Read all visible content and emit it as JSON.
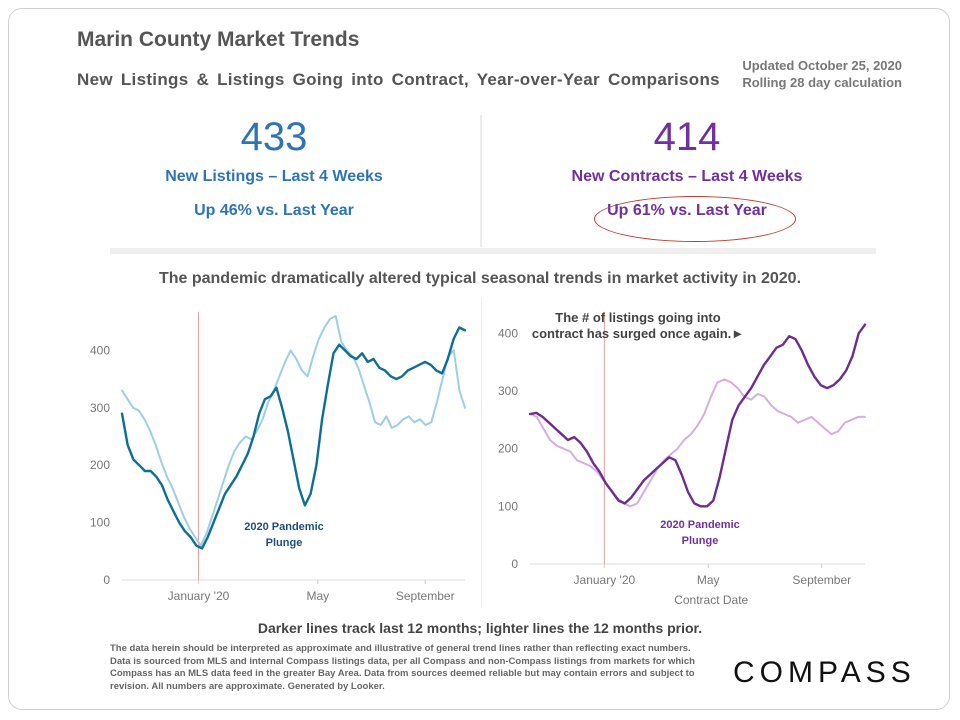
{
  "header": {
    "title": "Marin County Market Trends",
    "subtitle": "New Listings & Listings Going into Contract, Year-over-Year Comparisons",
    "updated": "Updated October 25, 2020",
    "rolling": "Rolling 28 day calculation"
  },
  "kpis": {
    "listings": {
      "value": "433",
      "label": "New Listings – Last 4 Weeks",
      "change": "Up 46% vs. Last Year"
    },
    "contracts": {
      "value": "414",
      "label": "New Contracts – Last 4 Weeks",
      "change": "Up 61% vs. Last Year"
    }
  },
  "section_heading": "The pandemic dramatically altered typical seasonal trends in market activity in 2020.",
  "footer": {
    "caption": "Darker lines track last 12 months; lighter lines the 12 months prior.",
    "disclaimer": "The data herein should be interpreted as approximate and illustrative of general trend lines rather than reflecting exact numbers. Data is sourced from MLS and internal Compass listings data, per all Compass and non-Compass listings from markets for which Compass has an MLS data feed in the greater Bay Area. Data from sources deemed reliable but may contain errors and subject to revision. All numbers are approximate. Generated by Looker.",
    "logo": "COMPASS"
  },
  "colors": {
    "blue_dark": "#0e6e96",
    "blue_light": "#9ccfe6",
    "purple_dark": "#6e2c8e",
    "purple_light": "#d4afde",
    "marker": "#e8a0a0"
  },
  "chart_data": [
    {
      "type": "line",
      "title": "New Listings",
      "xlabel": "",
      "ylabel": "",
      "ylim": [
        0,
        460
      ],
      "yticks": [
        0,
        100,
        200,
        300,
        400
      ],
      "x_tick_labels": [
        "January '20",
        "May",
        "September"
      ],
      "x_tick_positions": [
        0.223,
        0.571,
        0.884
      ],
      "marker_position": 0.223,
      "annotations": [
        {
          "text": [
            "2020 Pandemic",
            "Plunge"
          ]
        }
      ],
      "series": [
        {
          "name": "Last 12 months",
          "values": [
            290,
            235,
            210,
            200,
            190,
            190,
            180,
            165,
            140,
            120,
            100,
            85,
            75,
            60,
            55,
            75,
            100,
            125,
            150,
            165,
            180,
            200,
            220,
            250,
            290,
            315,
            320,
            335,
            300,
            260,
            210,
            160,
            130,
            150,
            200,
            280,
            340,
            395,
            410,
            400,
            390,
            385,
            395,
            380,
            385,
            370,
            365,
            355,
            350,
            355,
            365,
            370,
            375,
            380,
            375,
            365,
            360,
            385,
            420,
            440,
            435
          ]
        },
        {
          "name": "12 months prior",
          "values": [
            330,
            315,
            300,
            295,
            280,
            260,
            235,
            205,
            180,
            160,
            135,
            110,
            90,
            75,
            60,
            80,
            110,
            140,
            170,
            200,
            225,
            240,
            250,
            245,
            260,
            280,
            310,
            330,
            355,
            380,
            400,
            385,
            365,
            355,
            390,
            420,
            440,
            455,
            460,
            415,
            400,
            390,
            370,
            340,
            310,
            275,
            270,
            285,
            265,
            270,
            280,
            285,
            275,
            280,
            270,
            275,
            310,
            350,
            390,
            400,
            330,
            300
          ]
        }
      ]
    },
    {
      "type": "line",
      "title": "New Contracts",
      "xlabel": "Contract Date",
      "ylabel": "",
      "ylim": [
        0,
        430
      ],
      "yticks": [
        0,
        100,
        200,
        300,
        400
      ],
      "x_tick_labels": [
        "January '20",
        "May",
        "September"
      ],
      "x_tick_positions": [
        0.222,
        0.532,
        0.871
      ],
      "marker_position": 0.222,
      "annotations": [
        {
          "text": [
            "The # of listings going into",
            "contract has surged once again.►"
          ]
        },
        {
          "text": [
            "2020 Pandemic",
            "Plunge"
          ]
        }
      ],
      "series": [
        {
          "name": "Last 12 months",
          "values": [
            260,
            262,
            255,
            245,
            235,
            225,
            215,
            220,
            210,
            195,
            175,
            160,
            140,
            125,
            110,
            105,
            115,
            130,
            145,
            155,
            165,
            175,
            185,
            180,
            155,
            125,
            105,
            100,
            100,
            110,
            150,
            200,
            250,
            275,
            290,
            305,
            325,
            345,
            360,
            375,
            380,
            395,
            390,
            370,
            345,
            325,
            310,
            305,
            310,
            320,
            335,
            360,
            400,
            415
          ]
        },
        {
          "name": "12 months prior",
          "values": [
            260,
            255,
            235,
            215,
            205,
            200,
            195,
            180,
            175,
            170,
            160,
            145,
            130,
            115,
            105,
            100,
            105,
            125,
            145,
            165,
            180,
            190,
            200,
            215,
            225,
            240,
            260,
            290,
            315,
            320,
            315,
            305,
            290,
            285,
            295,
            290,
            275,
            265,
            260,
            255,
            245,
            250,
            255,
            245,
            235,
            225,
            230,
            245,
            250,
            255,
            255
          ]
        }
      ]
    }
  ]
}
